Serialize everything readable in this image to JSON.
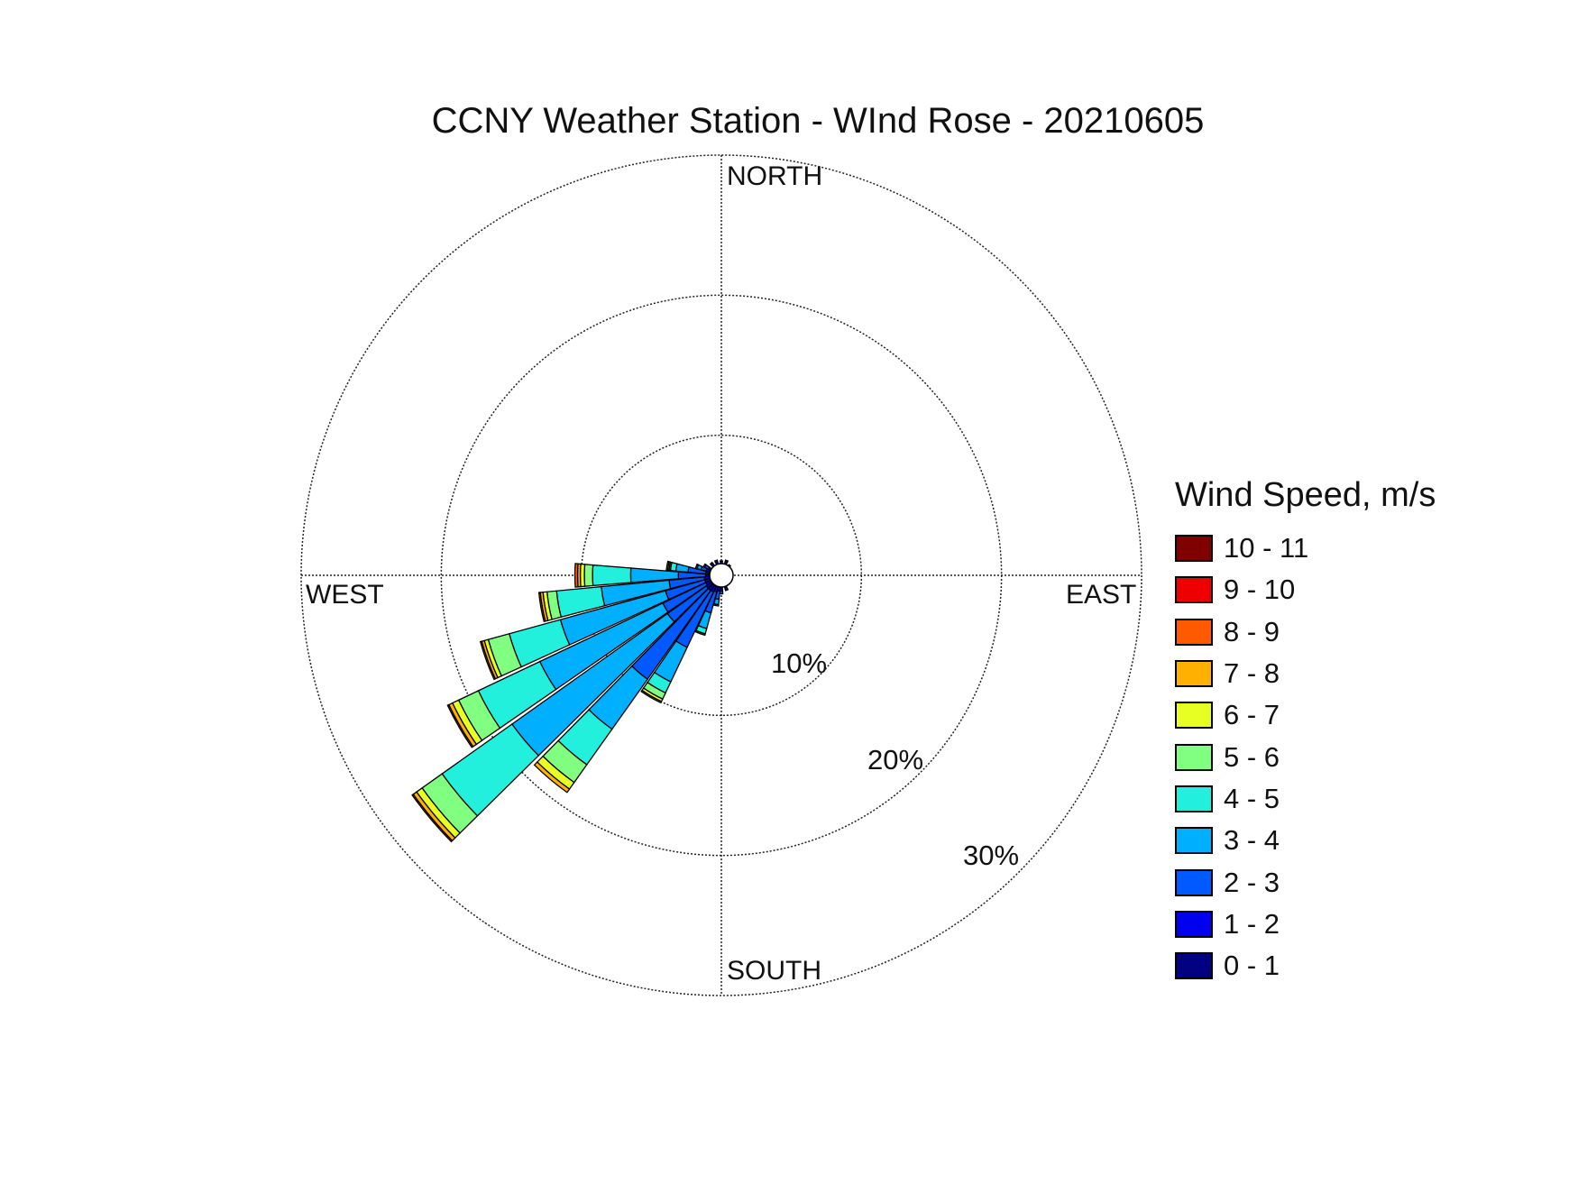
{
  "title": "CCNY Weather Station - WInd Rose - 20210605",
  "directions": {
    "north": "NORTH",
    "south": "SOUTH",
    "east": "EAST",
    "west": "WEST"
  },
  "ring_labels": [
    "10%",
    "20%",
    "30%"
  ],
  "legend": {
    "title": "Wind Speed, m/s",
    "items": [
      {
        "label": "10 - 11",
        "color": "#800000"
      },
      {
        "label": "9 - 10",
        "color": "#ee0000"
      },
      {
        "label": "8 - 9",
        "color": "#ff5a00"
      },
      {
        "label": "7 - 8",
        "color": "#ffb000"
      },
      {
        "label": "6 - 7",
        "color": "#e8ff24"
      },
      {
        "label": "5 - 6",
        "color": "#80ff80"
      },
      {
        "label": "4 - 5",
        "color": "#22f0dc"
      },
      {
        "label": "3 - 4",
        "color": "#00b0ff"
      },
      {
        "label": "2 - 3",
        "color": "#005aff"
      },
      {
        "label": "1 - 2",
        "color": "#0000ee"
      },
      {
        "label": "0 - 1",
        "color": "#000080"
      }
    ]
  },
  "chart_data": {
    "type": "wind-rose",
    "title": "CCNY Weather Station - WInd Rose - 20210605",
    "radial_unit": "%",
    "radial_max": 30,
    "radial_ticks": [
      10,
      20,
      30
    ],
    "bins": [
      "0 - 1",
      "1 - 2",
      "2 - 3",
      "3 - 4",
      "4 - 5",
      "5 - 6",
      "6 - 7",
      "7 - 8",
      "8 - 9",
      "9 - 10",
      "10 - 11"
    ],
    "directions": [
      {
        "deg": 270.0,
        "values": [
          0.0,
          0.3,
          2.0,
          3.5,
          2.8,
          0.6,
          0.3,
          0.2,
          0.2,
          0.0,
          0.0
        ]
      },
      {
        "deg": 260.0,
        "values": [
          0.0,
          0.4,
          2.6,
          5.0,
          3.3,
          0.7,
          0.3,
          0.2,
          0.1,
          0.0,
          0.0
        ]
      },
      {
        "deg": 250.0,
        "values": [
          0.0,
          0.4,
          3.0,
          8.0,
          3.9,
          1.6,
          0.3,
          0.2,
          0.1,
          0.0,
          0.0
        ]
      },
      {
        "deg": 240.0,
        "values": [
          0.0,
          0.4,
          3.5,
          10.0,
          5.0,
          1.6,
          0.5,
          0.3,
          0.1,
          0.0,
          0.0
        ]
      },
      {
        "deg": 230.0,
        "values": [
          0.0,
          0.5,
          3.5,
          14.0,
          6.3,
          1.8,
          0.5,
          0.3,
          0.1,
          0.0,
          0.0
        ]
      },
      {
        "deg": 220.0,
        "values": [
          0.0,
          0.5,
          8.0,
          4.5,
          3.2,
          1.6,
          0.6,
          0.3,
          0.0,
          0.0,
          0.0
        ]
      },
      {
        "deg": 210.0,
        "values": [
          0.0,
          0.5,
          4.5,
          2.8,
          0.9,
          0.5,
          0.2,
          0.1,
          0.0,
          0.0,
          0.0
        ]
      },
      {
        "deg": 200.0,
        "values": [
          0.0,
          0.4,
          1.6,
          1.2,
          0.4,
          0.1,
          0.0,
          0.0,
          0.0,
          0.0,
          0.0
        ]
      },
      {
        "deg": 190.0,
        "values": [
          0.0,
          0.3,
          0.6,
          0.4,
          0.1,
          0.0,
          0.0,
          0.0,
          0.0,
          0.0,
          0.0
        ]
      },
      {
        "deg": 280.0,
        "values": [
          0.0,
          0.3,
          1.3,
          0.9,
          0.4,
          0.1,
          0.1,
          0.1,
          0.0,
          0.0,
          0.0
        ]
      },
      {
        "deg": 290.0,
        "values": [
          0.0,
          0.3,
          0.4,
          0.3,
          0.1,
          0.0,
          0.0,
          0.0,
          0.0,
          0.0,
          0.0
        ]
      },
      {
        "deg": 300.0,
        "values": [
          0.0,
          0.2,
          0.3,
          0.1,
          0.0,
          0.0,
          0.0,
          0.0,
          0.0,
          0.0,
          0.0
        ]
      },
      {
        "deg": 320.0,
        "values": [
          0.0,
          0.2,
          0.1,
          0.0,
          0.0,
          0.0,
          0.0,
          0.0,
          0.0,
          0.0,
          0.0
        ]
      },
      {
        "deg": 340.0,
        "values": [
          0.0,
          0.2,
          0.1,
          0.0,
          0.0,
          0.0,
          0.0,
          0.0,
          0.0,
          0.0,
          0.0
        ]
      },
      {
        "deg": 0.0,
        "values": [
          0.0,
          0.2,
          0.0,
          0.0,
          0.0,
          0.0,
          0.0,
          0.0,
          0.0,
          0.0,
          0.0
        ]
      },
      {
        "deg": 20.0,
        "values": [
          0.0,
          0.2,
          0.1,
          0.0,
          0.0,
          0.0,
          0.0,
          0.0,
          0.0,
          0.0,
          0.0
        ]
      },
      {
        "deg": 40.0,
        "values": [
          0.0,
          0.1,
          0.0,
          0.0,
          0.0,
          0.0,
          0.0,
          0.0,
          0.0,
          0.0,
          0.0
        ]
      },
      {
        "deg": 160.0,
        "values": [
          0.0,
          0.2,
          0.1,
          0.0,
          0.0,
          0.0,
          0.0,
          0.0,
          0.0,
          0.0,
          0.0
        ]
      },
      {
        "deg": 180.0,
        "values": [
          0.0,
          0.3,
          0.2,
          0.0,
          0.0,
          0.0,
          0.0,
          0.0,
          0.0,
          0.0,
          0.0
        ]
      }
    ]
  }
}
